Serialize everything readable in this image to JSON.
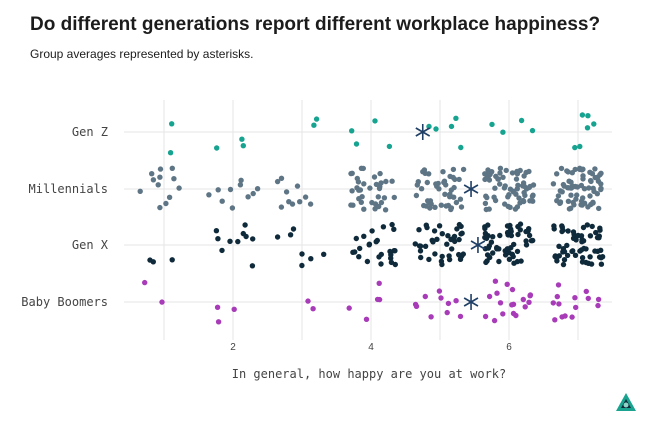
{
  "chart_data": {
    "type": "scatter",
    "title": "Do different generations report different workplace happiness?",
    "subtitle": "Group averages represented by asterisks.",
    "xlabel": "In general, how happy are you at work?",
    "ylabel": "",
    "xlim": [
      0.5,
      7.5
    ],
    "x_ticks": [
      "2",
      "4",
      "6"
    ],
    "x_tick_values": [
      2,
      4,
      6
    ],
    "categories": [
      "Gen Z",
      "Millennials",
      "Gen X",
      "Baby Boomers"
    ],
    "counts_by_score": [
      {
        "name": "Gen Z",
        "counts": [
          2,
          3,
          2,
          4,
          5,
          4,
          6
        ]
      },
      {
        "name": "Millennials",
        "counts": [
          12,
          10,
          10,
          35,
          45,
          65,
          70
        ]
      },
      {
        "name": "Gen X",
        "counts": [
          3,
          10,
          7,
          25,
          40,
          55,
          60
        ]
      },
      {
        "name": "Baby Boomers",
        "counts": [
          2,
          3,
          2,
          5,
          10,
          18,
          14
        ]
      }
    ],
    "means": [
      {
        "name": "Gen Z",
        "value": 4.75
      },
      {
        "name": "Millennials",
        "value": 5.45
      },
      {
        "name": "Gen X",
        "value": 5.55
      },
      {
        "name": "Baby Boomers",
        "value": 5.45
      }
    ],
    "colors": {
      "Gen Z": "#16a390",
      "Millennials": "#5e7585",
      "Gen X": "#0f2a3a",
      "Baby Boomers": "#a83bb8",
      "mean_marker": "#1f3f66",
      "grid": "#e6e6e6",
      "axis_text": "#444444"
    },
    "jitter": 0.36,
    "grid": true,
    "legend": "none"
  },
  "logo": {
    "icon": "triangle-logo-icon"
  }
}
